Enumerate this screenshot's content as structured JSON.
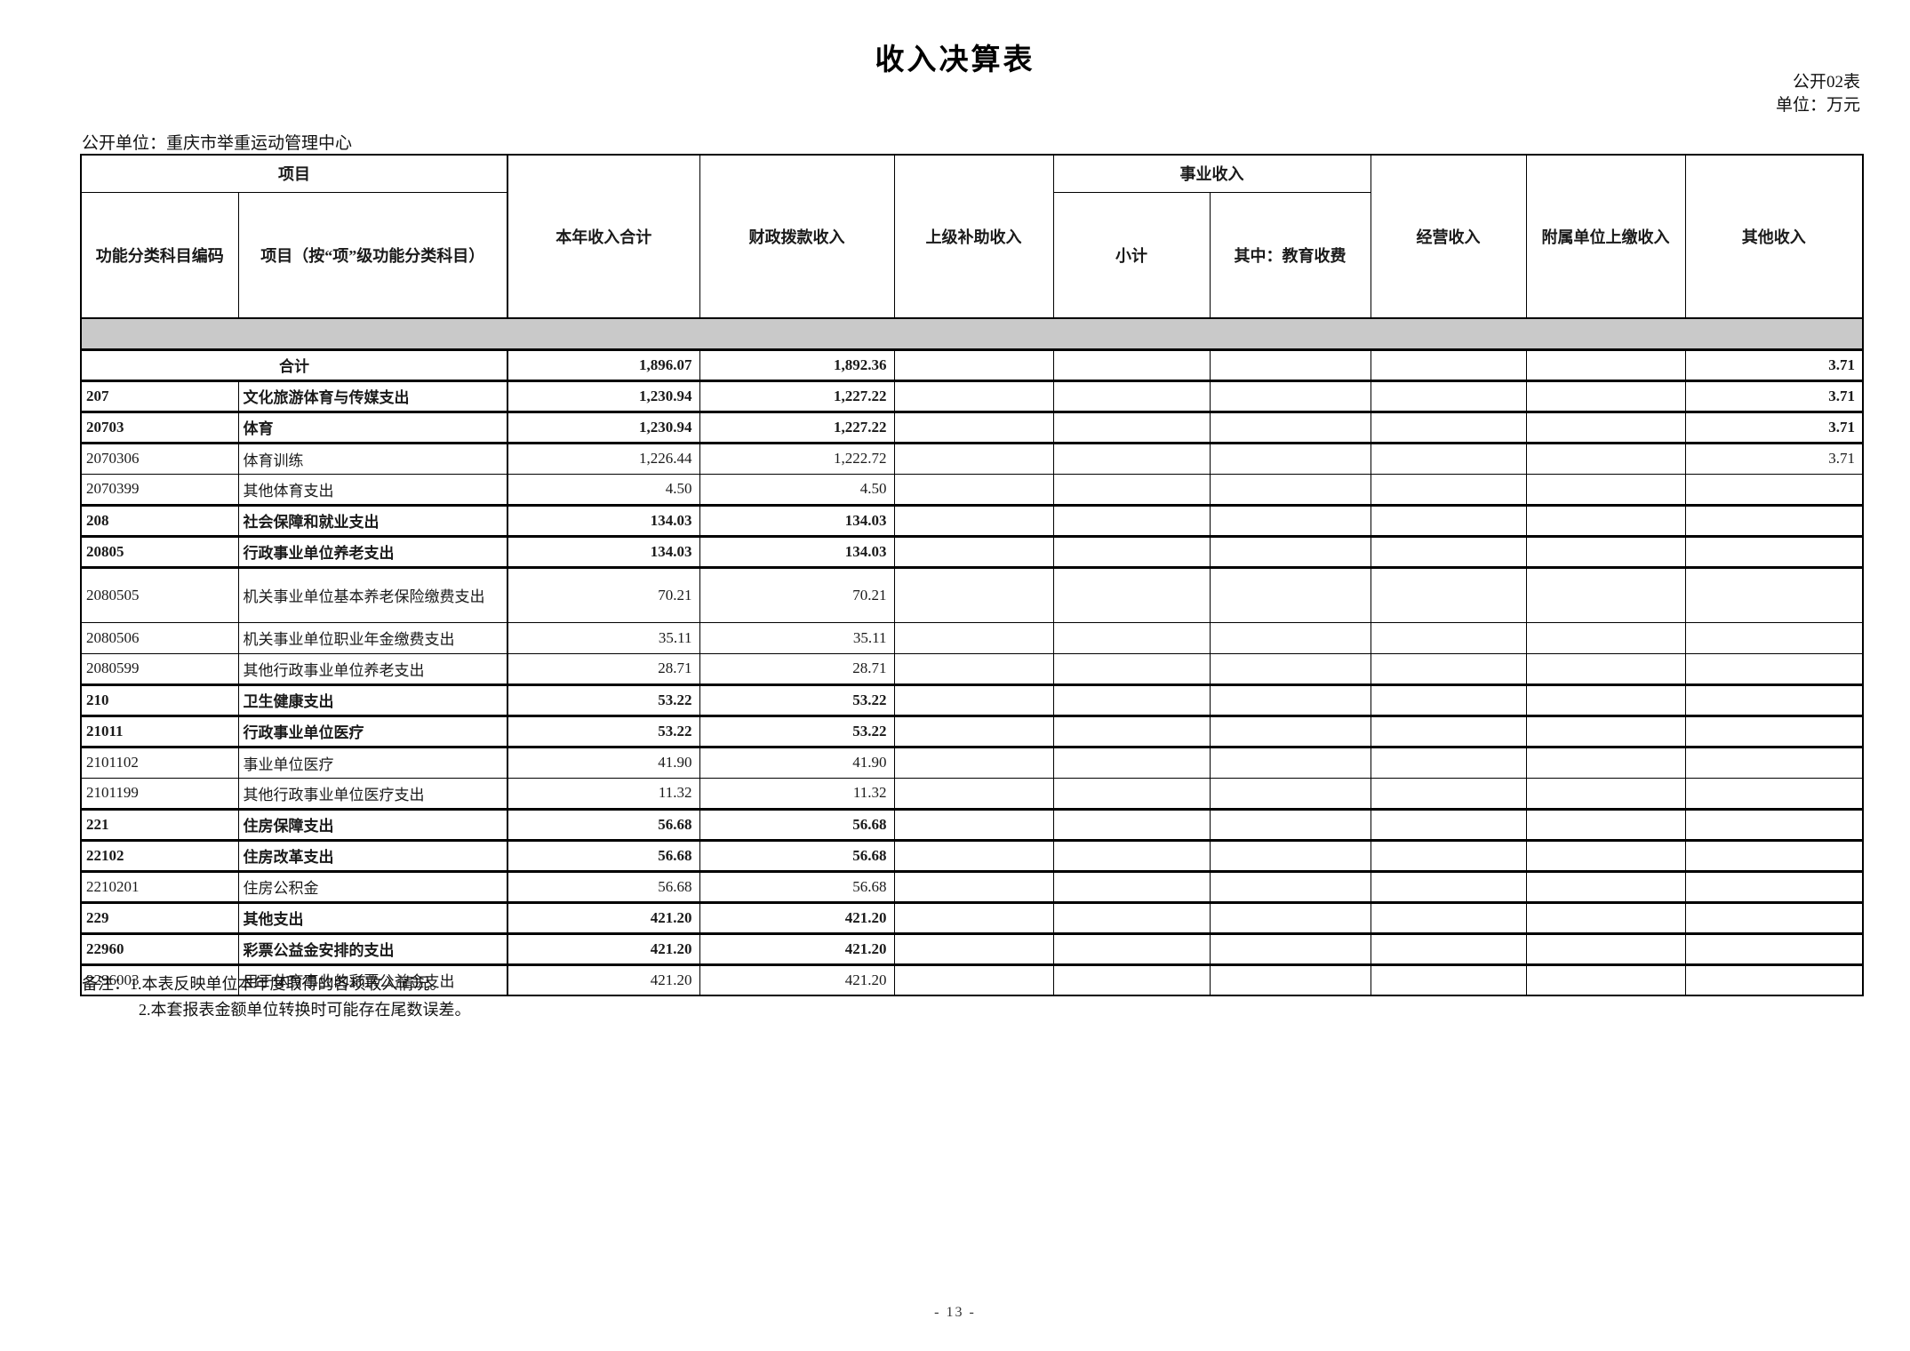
{
  "page": {
    "title": "收入决算表",
    "table_code": "公开02表",
    "unit_label": "单位：万元",
    "org_label": "公开单位：重庆市举重运动管理中心",
    "page_number": "- 13 -"
  },
  "table": {
    "header": {
      "project_group": "项目",
      "code_col": "功能分类科目编码",
      "item_col": "项目（按“项”级功能分类科目）",
      "total_col": "本年收入合计",
      "fiscal_col": "财政拨款收入",
      "superior_col": "上级补助收入",
      "business_group": "事业收入",
      "business_subtotal_col": "小计",
      "business_edu_col": "其中：教育收费",
      "operating_col": "经营收入",
      "affiliate_col": "附属单位上缴收入",
      "other_col": "其他收入"
    },
    "rows": [
      {
        "code": "",
        "item": "合计",
        "total": "1,896.07",
        "fiscal": "1,892.36",
        "superior": "",
        "subtotal": "",
        "edu": "",
        "operating": "",
        "affiliate": "",
        "other": "3.71",
        "bold": true,
        "merged": true
      },
      {
        "code": "207",
        "item": "文化旅游体育与传媒支出",
        "total": "1,230.94",
        "fiscal": "1,227.22",
        "superior": "",
        "subtotal": "",
        "edu": "",
        "operating": "",
        "affiliate": "",
        "other": "3.71",
        "bold": true
      },
      {
        "code": "20703",
        "item": "体育",
        "total": "1,230.94",
        "fiscal": "1,227.22",
        "superior": "",
        "subtotal": "",
        "edu": "",
        "operating": "",
        "affiliate": "",
        "other": "3.71",
        "bold": true
      },
      {
        "code": "2070306",
        "item": "体育训练",
        "total": "1,226.44",
        "fiscal": "1,222.72",
        "superior": "",
        "subtotal": "",
        "edu": "",
        "operating": "",
        "affiliate": "",
        "other": "3.71",
        "bold": false
      },
      {
        "code": "2070399",
        "item": "其他体育支出",
        "total": "4.50",
        "fiscal": "4.50",
        "superior": "",
        "subtotal": "",
        "edu": "",
        "operating": "",
        "affiliate": "",
        "other": "",
        "bold": false
      },
      {
        "code": "208",
        "item": "社会保障和就业支出",
        "total": "134.03",
        "fiscal": "134.03",
        "superior": "",
        "subtotal": "",
        "edu": "",
        "operating": "",
        "affiliate": "",
        "other": "",
        "bold": true
      },
      {
        "code": "20805",
        "item": "行政事业单位养老支出",
        "total": "134.03",
        "fiscal": "134.03",
        "superior": "",
        "subtotal": "",
        "edu": "",
        "operating": "",
        "affiliate": "",
        "other": "",
        "bold": true
      },
      {
        "code": "2080505",
        "item": "机关事业单位基本养老保险缴费支出",
        "total": "70.21",
        "fiscal": "70.21",
        "superior": "",
        "subtotal": "",
        "edu": "",
        "operating": "",
        "affiliate": "",
        "other": "",
        "bold": false,
        "tall": true
      },
      {
        "code": "2080506",
        "item": "机关事业单位职业年金缴费支出",
        "total": "35.11",
        "fiscal": "35.11",
        "superior": "",
        "subtotal": "",
        "edu": "",
        "operating": "",
        "affiliate": "",
        "other": "",
        "bold": false
      },
      {
        "code": "2080599",
        "item": "其他行政事业单位养老支出",
        "total": "28.71",
        "fiscal": "28.71",
        "superior": "",
        "subtotal": "",
        "edu": "",
        "operating": "",
        "affiliate": "",
        "other": "",
        "bold": false
      },
      {
        "code": "210",
        "item": "卫生健康支出",
        "total": "53.22",
        "fiscal": "53.22",
        "superior": "",
        "subtotal": "",
        "edu": "",
        "operating": "",
        "affiliate": "",
        "other": "",
        "bold": true
      },
      {
        "code": "21011",
        "item": "行政事业单位医疗",
        "total": "53.22",
        "fiscal": "53.22",
        "superior": "",
        "subtotal": "",
        "edu": "",
        "operating": "",
        "affiliate": "",
        "other": "",
        "bold": true
      },
      {
        "code": "2101102",
        "item": "事业单位医疗",
        "total": "41.90",
        "fiscal": "41.90",
        "superior": "",
        "subtotal": "",
        "edu": "",
        "operating": "",
        "affiliate": "",
        "other": "",
        "bold": false
      },
      {
        "code": "2101199",
        "item": "其他行政事业单位医疗支出",
        "total": "11.32",
        "fiscal": "11.32",
        "superior": "",
        "subtotal": "",
        "edu": "",
        "operating": "",
        "affiliate": "",
        "other": "",
        "bold": false
      },
      {
        "code": "221",
        "item": "住房保障支出",
        "total": "56.68",
        "fiscal": "56.68",
        "superior": "",
        "subtotal": "",
        "edu": "",
        "operating": "",
        "affiliate": "",
        "other": "",
        "bold": true
      },
      {
        "code": "22102",
        "item": "住房改革支出",
        "total": "56.68",
        "fiscal": "56.68",
        "superior": "",
        "subtotal": "",
        "edu": "",
        "operating": "",
        "affiliate": "",
        "other": "",
        "bold": true
      },
      {
        "code": "2210201",
        "item": "住房公积金",
        "total": "56.68",
        "fiscal": "56.68",
        "superior": "",
        "subtotal": "",
        "edu": "",
        "operating": "",
        "affiliate": "",
        "other": "",
        "bold": false
      },
      {
        "code": "229",
        "item": "其他支出",
        "total": "421.20",
        "fiscal": "421.20",
        "superior": "",
        "subtotal": "",
        "edu": "",
        "operating": "",
        "affiliate": "",
        "other": "",
        "bold": true
      },
      {
        "code": "22960",
        "item": "彩票公益金安排的支出",
        "total": "421.20",
        "fiscal": "421.20",
        "superior": "",
        "subtotal": "",
        "edu": "",
        "operating": "",
        "affiliate": "",
        "other": "",
        "bold": true
      },
      {
        "code": "2296003",
        "item": "用于体育事业的彩票公益金支出",
        "total": "421.20",
        "fiscal": "421.20",
        "superior": "",
        "subtotal": "",
        "edu": "",
        "operating": "",
        "affiliate": "",
        "other": "",
        "bold": false
      }
    ]
  },
  "notes": [
    "备注：1.本表反映单位本年度取得的各项收入情况。",
    "2.本套报表金额单位转换时可能存在尾数误差。"
  ]
}
